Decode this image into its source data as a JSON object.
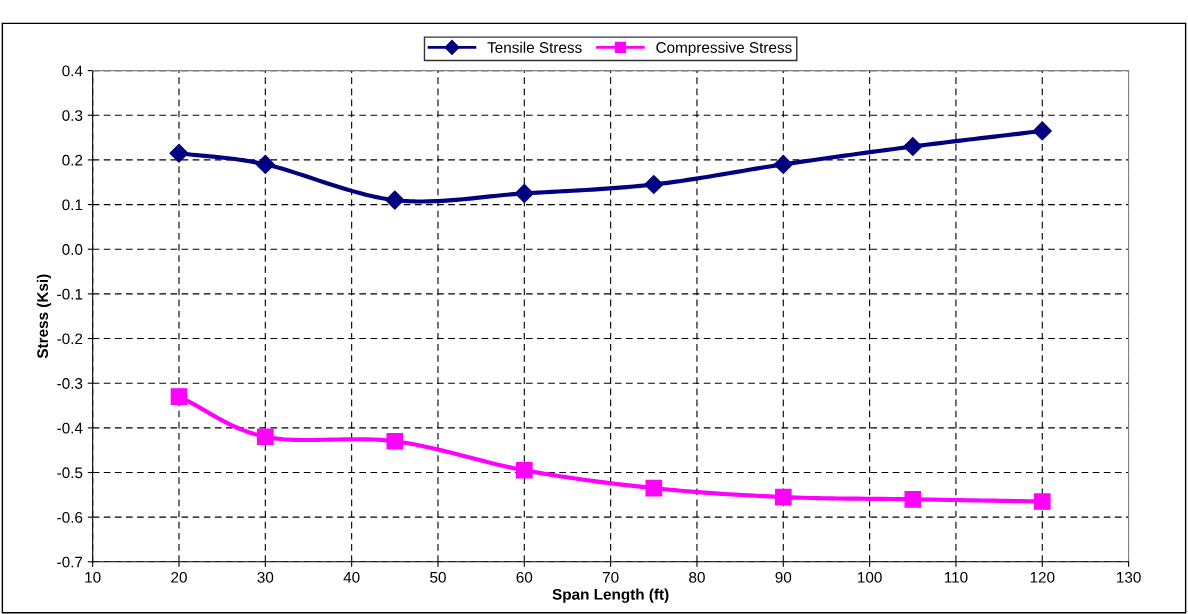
{
  "chart_data": {
    "type": "line",
    "xlabel": "Span Length (ft)",
    "ylabel": "Stress (Ksi)",
    "x": [
      20,
      30,
      45,
      60,
      75,
      90,
      105,
      120
    ],
    "series": [
      {
        "name": "Tensile Stress",
        "color": "#000080",
        "marker": "diamond",
        "values": [
          0.215,
          0.19,
          0.11,
          0.125,
          0.145,
          0.19,
          0.23,
          0.265
        ]
      },
      {
        "name": "Compressive Stress",
        "color": "#ff00ff",
        "marker": "square",
        "values": [
          -0.33,
          -0.42,
          -0.43,
          -0.495,
          -0.535,
          -0.555,
          -0.56,
          -0.565
        ]
      }
    ],
    "xlim": [
      10,
      130
    ],
    "xticks": [
      10,
      20,
      30,
      40,
      50,
      60,
      70,
      80,
      90,
      100,
      110,
      120,
      130
    ],
    "ylim": [
      -0.7,
      0.4
    ],
    "yticks": [
      {
        "value": -0.7,
        "label": "-0.7"
      },
      {
        "value": -0.6,
        "label": "-0.6"
      },
      {
        "value": -0.5,
        "label": "-0.5"
      },
      {
        "value": -0.4,
        "label": "-0.4"
      },
      {
        "value": -0.3,
        "label": "-0.3"
      },
      {
        "value": -0.2,
        "label": "-0.2"
      },
      {
        "value": -0.1,
        "label": "-0.1"
      },
      {
        "value": 0,
        "label": "0.0"
      },
      {
        "value": 0.1,
        "label": "0.1"
      },
      {
        "value": 0.2,
        "label": "0.2"
      },
      {
        "value": 0.3,
        "label": "0.3"
      },
      {
        "value": 0.4,
        "label": "0.4"
      }
    ],
    "grid": true,
    "legend": "top",
    "line_style": "solid"
  }
}
